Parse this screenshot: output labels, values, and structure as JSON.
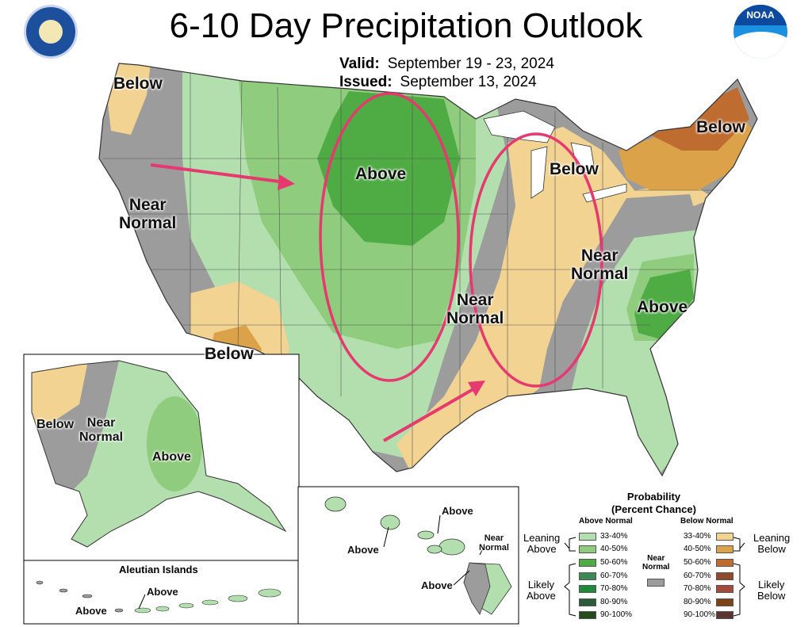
{
  "title": "6-10 Day Precipitation Outlook",
  "valid": {
    "label": "Valid:",
    "value": "September 19 - 23, 2024"
  },
  "issued": {
    "label": "Issued:",
    "value": "September 13, 2024"
  },
  "logos": {
    "left": "doc-seal",
    "right": "noaa-logo"
  },
  "labels": {
    "below_nw": "Below",
    "near_normal_west": "Near\nNormal",
    "above_plains": "Above",
    "below_sw": "Below",
    "near_normal_south": "Near\nNormal",
    "below_mi": "Below",
    "below_ne": "Below",
    "near_normal_east": "Near\nNormal",
    "above_se": "Above"
  },
  "alaska": {
    "below": "Below",
    "near_normal": "Near\nNormal",
    "above": "Above"
  },
  "aleutian": {
    "title": "Aleutian Islands",
    "above": "Above",
    "below_above": "Above"
  },
  "hawaii": {
    "above_top": "Above",
    "above_left": "Above",
    "near_normal": "Near\nNormal",
    "above_bottom": "Above"
  },
  "legend": {
    "title": "Probability\n(Percent Chance)",
    "above_head": "Above Normal",
    "below_head": "Below Normal",
    "near_head": "Near\nNormal",
    "leaning_above": "Leaning\nAbove",
    "likely_above": "Likely\nAbove",
    "leaning_below": "Leaning\nBelow",
    "likely_below": "Likely\nBelow",
    "above_bins": [
      "33-40%",
      "40-50%",
      "50-60%",
      "60-70%",
      "70-80%",
      "80-90%",
      "90-100%"
    ],
    "below_bins": [
      "33-40%",
      "40-50%",
      "50-60%",
      "60-70%",
      "70-80%",
      "80-90%",
      "90-100%"
    ],
    "above_colors": [
      "#b3dfae",
      "#8fcc7d",
      "#4fab44",
      "#3b8a55",
      "#1e8a3c",
      "#2d5a3a",
      "#254a1c"
    ],
    "below_colors": [
      "#f2d391",
      "#dca24a",
      "#bf6c31",
      "#8e4a2b",
      "#a5493c",
      "#7a4416",
      "#5a3530"
    ],
    "near_color": "#9c9c9c"
  },
  "colors": {
    "near": "#9c9c9c",
    "above1": "#b3dfae",
    "above2": "#8fcc7d",
    "above3": "#4fab44",
    "below1": "#f2d391",
    "below2": "#dca24a",
    "below3": "#bf6c31",
    "annotation": "#e5396f"
  }
}
